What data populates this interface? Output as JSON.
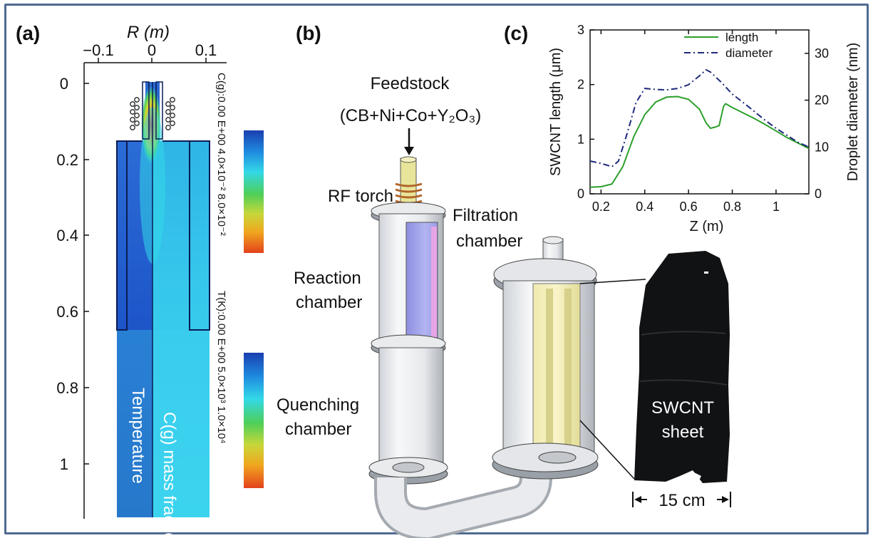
{
  "panels": {
    "a": {
      "label": "(a)",
      "axis_title": "R (m)",
      "top_ticks": [
        "−0.1",
        "0",
        "0.1"
      ],
      "left_ticks": [
        "0",
        "0.2",
        "0.4",
        "0.6",
        "0.8",
        "1"
      ],
      "left_label_text": "Temperature",
      "right_label_text": "C(g) mass fraction",
      "legend_cg": "C(g):0.00 E+00 4.0×10⁻² 8.0×10⁻²",
      "legend_t": "T(K):0.00 E+00  5.0×10³  1.0×10⁴"
    },
    "b": {
      "label": "(b)",
      "feedstock_title": "Feedstock",
      "feedstock_formula": "(CB+Ni+Co+Y₂O₃)",
      "rf_torch": "RF torch",
      "reaction_1": "Reaction",
      "reaction_2": "chamber",
      "quenching_1": "Quenching",
      "quenching_2": "chamber",
      "filtration_1": "Filtration",
      "filtration_2": "chamber",
      "sheet_1": "SWCNT",
      "sheet_2": "sheet",
      "scale": "15 cm"
    },
    "c": {
      "label": "(c)"
    }
  },
  "chart_data": {
    "type": "line",
    "xlabel": "Z (m)",
    "ylabel": "SWCNT length (μm)",
    "y2label": "Droplet diameter (nm)",
    "xlim": [
      0.15,
      1.15
    ],
    "ylim": [
      0,
      3
    ],
    "y2lim": [
      0,
      35
    ],
    "xticks": [
      "0.2",
      "0.4",
      "0.6",
      "0.8",
      "1"
    ],
    "yticks": [
      "0",
      "1",
      "2",
      "3"
    ],
    "y2ticks": [
      "0",
      "10",
      "20",
      "30"
    ],
    "legend_position": "top-right",
    "series": [
      {
        "name": "length",
        "axis": "left",
        "color": "#2ca02c",
        "dash": "solid",
        "x": [
          0.15,
          0.2,
          0.25,
          0.3,
          0.35,
          0.4,
          0.45,
          0.5,
          0.55,
          0.6,
          0.65,
          0.68,
          0.7,
          0.72,
          0.74,
          0.76,
          0.77,
          0.8,
          0.85,
          0.9,
          0.95,
          1.0,
          1.05,
          1.1,
          1.15
        ],
        "values": [
          0.12,
          0.13,
          0.18,
          0.5,
          1.05,
          1.45,
          1.68,
          1.77,
          1.78,
          1.73,
          1.55,
          1.3,
          1.2,
          1.22,
          1.25,
          1.6,
          1.65,
          1.58,
          1.48,
          1.38,
          1.27,
          1.15,
          1.03,
          0.93,
          0.83
        ]
      },
      {
        "name": "diameter",
        "axis": "right",
        "color": "#1f2a7a",
        "dash": "dashdot",
        "x": [
          0.15,
          0.2,
          0.25,
          0.28,
          0.32,
          0.36,
          0.4,
          0.45,
          0.5,
          0.55,
          0.6,
          0.65,
          0.68,
          0.7,
          0.75,
          0.8,
          0.85,
          0.9,
          0.95,
          1.0,
          1.05,
          1.1,
          1.15
        ],
        "values": [
          7,
          6.5,
          5.8,
          7,
          13,
          19.5,
          22.5,
          22.3,
          22.2,
          22.5,
          23.3,
          25.2,
          26.5,
          26,
          23.8,
          21.3,
          19.5,
          17.6,
          15.7,
          14,
          12.5,
          11,
          10
        ]
      }
    ]
  },
  "colorbar": {
    "colors": [
      "#1a3fb0",
      "#1f8de0",
      "#33d8e8",
      "#4ecf58",
      "#c7d73a",
      "#f0a61e",
      "#e3421c"
    ]
  }
}
